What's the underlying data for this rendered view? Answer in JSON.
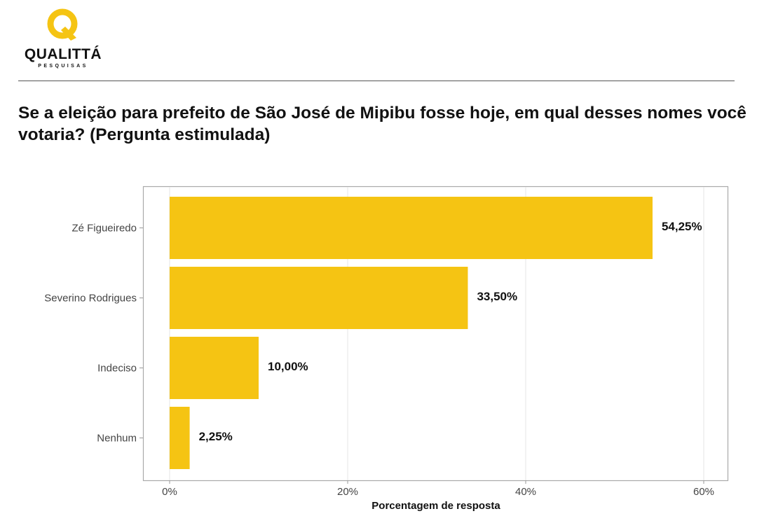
{
  "brand": {
    "name": "QUALITTÁ",
    "sub": "PESQUISAS",
    "color": "#F5C413"
  },
  "question": "Se a eleição para prefeito de São José de Mipibu fosse hoje, em qual desses nomes você votaria? (Pergunta estimulada)",
  "chart_data": {
    "type": "bar",
    "orientation": "horizontal",
    "categories": [
      "Zé Figueiredo",
      "Severino Rodrigues",
      "Indeciso",
      "Nenhum"
    ],
    "values": [
      54.25,
      33.5,
      10.0,
      2.25
    ],
    "data_labels": [
      "54,25%",
      "33,50%",
      "10,00%",
      "2,25%"
    ],
    "xlabel": "Porcentagem de resposta",
    "ylabel": "",
    "xlim": [
      0,
      60
    ],
    "ticks": [
      0,
      20,
      40,
      60
    ],
    "tick_labels": [
      "0%",
      "20%",
      "40%",
      "60%"
    ],
    "grid": true,
    "bar_color": "#F5C413"
  }
}
